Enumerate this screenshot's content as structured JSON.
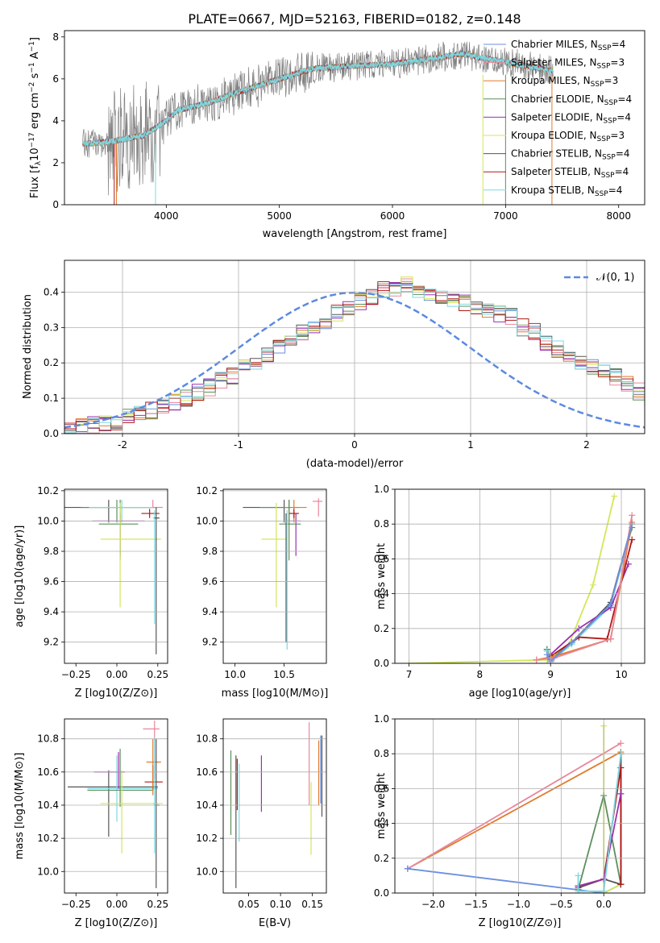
{
  "figure": {
    "title": "PLATE=0667, MJD=52163, FIBERID=0182, z=0.148",
    "legend": [
      {
        "label": "Chabrier MILES, N",
        "sub": "SSP",
        "tail": "=4",
        "color": "#6b8fe0"
      },
      {
        "label": "Salpeter MILES, N",
        "sub": "SSP",
        "tail": "=3",
        "color": "#e8879b"
      },
      {
        "label": "Kroupa MILES, N",
        "sub": "SSP",
        "tail": "=3",
        "color": "#e07b2e"
      },
      {
        "label": "Chabrier ELODIE, N",
        "sub": "SSP",
        "tail": "=4",
        "color": "#5b8f5b"
      },
      {
        "label": "Salpeter ELODIE, N",
        "sub": "SSP",
        "tail": "=4",
        "color": "#9b30b0"
      },
      {
        "label": "Kroupa ELODIE, N",
        "sub": "SSP",
        "tail": "=3",
        "color": "#d4e65a"
      },
      {
        "label": "Chabrier STELIB, N",
        "sub": "SSP",
        "tail": "=4",
        "color": "#555555"
      },
      {
        "label": "Salpeter STELIB, N",
        "sub": "SSP",
        "tail": "=4",
        "color": "#b01818"
      },
      {
        "label": "Kroupa STELIB, N",
        "sub": "SSP",
        "tail": "=4",
        "color": "#7fd8e0"
      }
    ],
    "hist_legend": "𝒩(0, 1)",
    "gauss_color": "#5b8ae0"
  },
  "chart_data": [
    {
      "type": "line",
      "name": "spectrum",
      "xlabel": "wavelength [Angstrom, rest frame]",
      "ylabel_parts": [
        "Flux [f",
        "λ",
        "10",
        "−17",
        " erg cm",
        "−2",
        " s",
        "−1",
        " A",
        "−1",
        "]"
      ],
      "xlim": [
        3100,
        8230
      ],
      "ylim": [
        0,
        8.3
      ],
      "xticks": [
        4000,
        5000,
        6000,
        7000,
        8000
      ],
      "yticks": [
        0,
        2,
        4,
        6,
        8
      ],
      "data_color": "#808080",
      "model_color": "#7fd8e0",
      "envelope": {
        "x": [
          3250,
          3500,
          3800,
          4000,
          4100,
          4400,
          4600,
          5000,
          5300,
          5600,
          6000,
          6400,
          6600,
          7000,
          7300,
          7400
        ],
        "y": [
          2.9,
          3.0,
          3.3,
          4.0,
          4.5,
          4.9,
          5.3,
          6.0,
          6.5,
          6.6,
          6.7,
          7.0,
          7.2,
          6.8,
          6.5,
          6.4
        ]
      },
      "data_extent": [
        3260,
        7420
      ],
      "model_extent": [
        3260,
        7420
      ]
    },
    {
      "type": "histogram",
      "name": "residuals",
      "xlabel": "(data-model)/error",
      "ylabel": "Normed distribution",
      "xlim": [
        -2.5,
        2.5
      ],
      "ylim": [
        0,
        0.49
      ],
      "xticks": [
        -2,
        -1,
        0,
        1,
        2
      ],
      "yticks": [
        0.0,
        0.1,
        0.2,
        0.3,
        0.4
      ],
      "bin_edges_start": -2.5,
      "bin_width": 0.1,
      "base_profile": [
        0.02,
        0.02,
        0.025,
        0.03,
        0.035,
        0.045,
        0.055,
        0.065,
        0.08,
        0.09,
        0.1,
        0.115,
        0.13,
        0.15,
        0.165,
        0.185,
        0.2,
        0.22,
        0.24,
        0.26,
        0.285,
        0.3,
        0.32,
        0.34,
        0.36,
        0.375,
        0.39,
        0.405,
        0.41,
        0.42,
        0.4,
        0.4,
        0.39,
        0.38,
        0.37,
        0.36,
        0.35,
        0.34,
        0.33,
        0.3,
        0.29,
        0.26,
        0.24,
        0.22,
        0.2,
        0.19,
        0.18,
        0.16,
        0.14,
        0.12,
        0.1,
        0.09,
        0.075,
        0.065,
        0.055,
        0.045,
        0.04,
        0.035,
        0.03,
        0.025,
        0.02
      ]
    },
    {
      "type": "errorbar",
      "name": "age-vs-Z",
      "xlabel": "Z [log10(Z/Z⊙)]",
      "ylabel": "age [log10(age/yr)]",
      "xlim": [
        -0.32,
        0.31
      ],
      "ylim": [
        9.06,
        10.21
      ],
      "xticks": [
        -0.25,
        0.0,
        0.25
      ],
      "xtick_labels": [
        "−0.25",
        "0.00",
        "0.25"
      ],
      "yticks": [
        9.2,
        9.4,
        9.6,
        9.8,
        10.0,
        10.2
      ],
      "points": [
        {
          "x": -0.05,
          "y": 10.09,
          "xerr": [
            0.27,
            0.3
          ],
          "yerr": [
            0.1,
            0.05
          ],
          "c": 6
        },
        {
          "x": 0.0,
          "y": 10.09,
          "xerr": [
            0.22,
            0.22
          ],
          "yerr": [
            0.1,
            0.05
          ],
          "c": 3
        },
        {
          "x": 0.03,
          "y": 10.09,
          "xerr": [
            0.2,
            0.2
          ],
          "yerr": [
            0.1,
            0.05
          ],
          "c": 8
        },
        {
          "x": 0.22,
          "y": 10.09,
          "xerr": [
            0.0,
            0.06
          ],
          "yerr": [
            0.0,
            0.05
          ],
          "c": 1
        },
        {
          "x": 0.2,
          "y": 10.05,
          "xerr": [
            0.05,
            0.06
          ],
          "yerr": [
            0.03,
            0.03
          ],
          "c": 7
        },
        {
          "x": 0.02,
          "y": 10.0,
          "xerr": [
            0.17,
            0.15
          ],
          "yerr": [
            0.23,
            0.05
          ],
          "c": 4
        },
        {
          "x": 0.02,
          "y": 9.98,
          "xerr": [
            0.13,
            0.11
          ],
          "yerr": [
            0.24,
            0.16
          ],
          "c": 3
        },
        {
          "x": 0.02,
          "y": 9.88,
          "xerr": [
            0.12,
            0.25
          ],
          "yerr": [
            0.45,
            0.24
          ],
          "c": 5
        },
        {
          "x": 0.23,
          "y": 10.02,
          "xerr": [
            0.01,
            0.03
          ],
          "yerr": [
            0.7,
            0.05
          ],
          "c": 8
        },
        {
          "x": 0.24,
          "y": 10.02,
          "xerr": [
            0.01,
            0.02
          ],
          "yerr": [
            0.9,
            0.07
          ],
          "c": 6
        }
      ]
    },
    {
      "type": "errorbar",
      "name": "age-vs-mass",
      "xlabel": "mass [log10(M/M⊙)]",
      "xlim": [
        9.88,
        10.93
      ],
      "ylim": [
        9.06,
        10.21
      ],
      "xticks": [
        10.0,
        10.5
      ],
      "xtick_labels": [
        "10.0",
        "10.5"
      ],
      "yticks": [
        9.2,
        9.4,
        9.6,
        9.8,
        10.0,
        10.2
      ],
      "points": [
        {
          "x": 10.5,
          "y": 10.09,
          "xerr": [
            0.42,
            0.05
          ],
          "yerr": [
            0.1,
            0.05
          ],
          "c": 6
        },
        {
          "x": 10.55,
          "y": 10.09,
          "xerr": [
            0.3,
            0.1
          ],
          "yerr": [
            0.1,
            0.05
          ],
          "c": 3
        },
        {
          "x": 10.6,
          "y": 10.09,
          "xerr": [
            0.1,
            0.13
          ],
          "yerr": [
            0.1,
            0.05
          ],
          "c": 2
        },
        {
          "x": 10.85,
          "y": 10.13,
          "xerr": [
            0.06,
            0.04
          ],
          "yerr": [
            0.1,
            0.02
          ],
          "c": 1
        },
        {
          "x": 10.6,
          "y": 10.05,
          "xerr": [
            0.05,
            0.05
          ],
          "yerr": [
            0.03,
            0.03
          ],
          "c": 7
        },
        {
          "x": 10.62,
          "y": 10.0,
          "xerr": [
            0.1,
            0.05
          ],
          "yerr": [
            0.23,
            0.05
          ],
          "c": 4
        },
        {
          "x": 10.55,
          "y": 9.98,
          "xerr": [
            0.1,
            0.12
          ],
          "yerr": [
            0.24,
            0.16
          ],
          "c": 3
        },
        {
          "x": 10.42,
          "y": 9.88,
          "xerr": [
            0.15,
            0.1
          ],
          "yerr": [
            0.45,
            0.24
          ],
          "c": 5
        },
        {
          "x": 10.52,
          "y": 10.0,
          "xerr": [
            0.01,
            0.02
          ],
          "yerr": [
            0.8,
            0.05
          ],
          "c": 6
        },
        {
          "x": 10.53,
          "y": 10.0,
          "xerr": [
            0.01,
            0.02
          ],
          "yerr": [
            0.85,
            0.07
          ],
          "c": 8
        }
      ]
    },
    {
      "type": "line",
      "name": "weight-vs-age",
      "xlabel": "age [log10(age/yr)]",
      "ylabel": "mass weight",
      "xlim": [
        6.8,
        10.33
      ],
      "ylim": [
        0.0,
        1.0
      ],
      "xticks": [
        7,
        8,
        9,
        10
      ],
      "yticks": [
        0.0,
        0.2,
        0.4,
        0.6,
        0.8,
        1.0
      ],
      "series": [
        {
          "c": 5,
          "x": [
            7.0,
            8.95,
            9.25,
            9.6,
            9.9
          ],
          "y": [
            0.0,
            0.02,
            0.1,
            0.45,
            0.96
          ]
        },
        {
          "c": 6,
          "x": [
            8.95,
            9.0,
            9.3,
            9.85,
            10.15
          ],
          "y": [
            0.08,
            0.02,
            0.12,
            0.35,
            0.8
          ]
        },
        {
          "c": 3,
          "x": [
            8.95,
            9.0,
            9.3,
            9.85,
            10.15
          ],
          "y": [
            0.08,
            0.02,
            0.12,
            0.34,
            0.78
          ]
        },
        {
          "c": 8,
          "x": [
            8.95,
            9.0,
            9.3,
            9.85,
            10.15
          ],
          "y": [
            0.07,
            0.01,
            0.11,
            0.33,
            0.8
          ]
        },
        {
          "c": 4,
          "x": [
            9.0,
            9.4,
            9.85,
            10.1
          ],
          "y": [
            0.05,
            0.2,
            0.32,
            0.57
          ]
        },
        {
          "c": 7,
          "x": [
            9.0,
            9.4,
            9.8,
            10.15
          ],
          "y": [
            0.04,
            0.15,
            0.14,
            0.71
          ]
        },
        {
          "c": 2,
          "x": [
            8.8,
            9.05,
            9.85,
            10.15
          ],
          "y": [
            0.02,
            0.04,
            0.14,
            0.81
          ]
        },
        {
          "c": 1,
          "x": [
            8.8,
            9.05,
            9.85,
            10.15
          ],
          "y": [
            0.02,
            0.03,
            0.14,
            0.85
          ]
        },
        {
          "c": 0,
          "x": [
            8.95,
            9.0,
            9.3,
            9.85,
            10.15
          ],
          "y": [
            0.05,
            0.01,
            0.12,
            0.34,
            0.8
          ]
        }
      ]
    },
    {
      "type": "errorbar",
      "name": "mass-vs-Z",
      "xlabel": "Z [log10(Z/Z⊙)]",
      "ylabel": "mass [log10(M/M⊙)]",
      "xlim": [
        -0.32,
        0.31
      ],
      "ylim": [
        9.87,
        10.92
      ],
      "xticks": [
        -0.25,
        0.0,
        0.25
      ],
      "xtick_labels": [
        "−0.25",
        "0.00",
        "0.25"
      ],
      "yticks": [
        10.0,
        10.2,
        10.4,
        10.6,
        10.8
      ],
      "points": [
        {
          "x": -0.05,
          "y": 10.51,
          "xerr": [
            0.25,
            0.3
          ],
          "yerr": [
            0.3,
            0.1
          ],
          "c": 6
        },
        {
          "x": 0.0,
          "y": 10.5,
          "xerr": [
            0.18,
            0.25
          ],
          "yerr": [
            0.2,
            0.2
          ],
          "c": 8
        },
        {
          "x": 0.02,
          "y": 10.49,
          "xerr": [
            0.2,
            0.2
          ],
          "yerr": [
            0.1,
            0.25
          ],
          "c": 3
        },
        {
          "x": 0.01,
          "y": 10.6,
          "xerr": [
            0.15,
            0.04
          ],
          "yerr": [
            0.1,
            0.12
          ],
          "c": 4
        },
        {
          "x": 0.22,
          "y": 10.54,
          "xerr": [
            0.05,
            0.06
          ],
          "yerr": [
            0.05,
            0.1
          ],
          "c": 7
        },
        {
          "x": 0.22,
          "y": 10.66,
          "xerr": [
            0.04,
            0.05
          ],
          "yerr": [
            0.2,
            0.14
          ],
          "c": 2
        },
        {
          "x": 0.23,
          "y": 10.86,
          "xerr": [
            0.07,
            0.03
          ],
          "yerr": [
            0.3,
            0.05
          ],
          "c": 1
        },
        {
          "x": 0.03,
          "y": 10.41,
          "xerr": [
            0.13,
            0.25
          ],
          "yerr": [
            0.3,
            0.2
          ],
          "c": 5
        },
        {
          "x": 0.24,
          "y": 10.4,
          "xerr": [
            0.01,
            0.02
          ],
          "yerr": [
            0.5,
            0.4
          ],
          "c": 6
        },
        {
          "x": 0.23,
          "y": 10.41,
          "xerr": [
            0.01,
            0.02
          ],
          "yerr": [
            0.3,
            0.4
          ],
          "c": 8
        }
      ]
    },
    {
      "type": "errorbar",
      "name": "mass-vs-ebv",
      "xlabel": "E(B-V)",
      "xlim": [
        0.01,
        0.172
      ],
      "ylim": [
        9.87,
        10.92
      ],
      "xticks": [
        0.05,
        0.1,
        0.15
      ],
      "xtick_labels": [
        "0.05",
        "0.10",
        "0.15"
      ],
      "yticks": [
        10.0,
        10.2,
        10.4,
        10.6,
        10.8
      ],
      "points": [
        {
          "x": 0.022,
          "y": 10.48,
          "yerr": [
            0.26,
            0.25
          ],
          "c": 3
        },
        {
          "x": 0.03,
          "y": 10.4,
          "yerr": [
            0.5,
            0.3
          ],
          "c": 6
        },
        {
          "x": 0.032,
          "y": 10.52,
          "yerr": [
            0.15,
            0.16
          ],
          "c": 7
        },
        {
          "x": 0.035,
          "y": 10.4,
          "yerr": [
            0.22,
            0.25
          ],
          "c": 8
        },
        {
          "x": 0.07,
          "y": 10.52,
          "yerr": [
            0.16,
            0.18
          ],
          "c": 4
        },
        {
          "x": 0.145,
          "y": 10.66,
          "yerr": [
            0.26,
            0.24
          ],
          "c": 1
        },
        {
          "x": 0.148,
          "y": 10.3,
          "yerr": [
            0.2,
            0.24
          ],
          "c": 5
        },
        {
          "x": 0.16,
          "y": 10.6,
          "yerr": [
            0.2,
            0.19
          ],
          "c": 2
        },
        {
          "x": 0.163,
          "y": 10.62,
          "yerr": [
            0.21,
            0.2
          ],
          "c": 0
        },
        {
          "x": 0.165,
          "y": 10.58,
          "yerr": [
            0.25,
            0.24
          ],
          "c": 6
        }
      ]
    },
    {
      "type": "line",
      "name": "weight-vs-Z",
      "xlabel": "Z [log10(Z/Z⊙)]",
      "ylabel": "mass weight",
      "xlim": [
        -2.45,
        0.48
      ],
      "ylim": [
        0.0,
        1.0
      ],
      "xticks": [
        -2.0,
        -1.5,
        -1.0,
        -0.5,
        0.0
      ],
      "xtick_labels": [
        "−2.0",
        "−1.5",
        "−1.0",
        "−0.5",
        "0.0"
      ],
      "yticks": [
        0.0,
        0.2,
        0.4,
        0.6,
        0.8,
        1.0
      ],
      "series": [
        {
          "c": 2,
          "x": [
            -2.3,
            0.2
          ],
          "y": [
            0.14,
            0.81
          ]
        },
        {
          "c": 1,
          "x": [
            -2.3,
            0.2
          ],
          "y": [
            0.14,
            0.86
          ]
        },
        {
          "c": 0,
          "x": [
            -2.3,
            0.0,
            0.2,
            0.2
          ],
          "y": [
            0.14,
            0.0,
            0.05,
            0.8
          ]
        },
        {
          "c": 5,
          "x": [
            0.0,
            0.0,
            0.2
          ],
          "y": [
            0.96,
            0.0,
            0.05
          ]
        },
        {
          "c": 3,
          "x": [
            -0.3,
            0.0,
            0.2,
            0.2
          ],
          "y": [
            0.02,
            0.56,
            0.05,
            0.8
          ]
        },
        {
          "c": 6,
          "x": [
            -0.3,
            0.0,
            0.2,
            0.2
          ],
          "y": [
            0.03,
            0.08,
            0.05,
            0.8
          ]
        },
        {
          "c": 7,
          "x": [
            -0.3,
            0.0,
            0.2,
            0.2
          ],
          "y": [
            0.04,
            0.08,
            0.72,
            0.05
          ]
        },
        {
          "c": 4,
          "x": [
            -0.3,
            0.0,
            0.2
          ],
          "y": [
            0.04,
            0.08,
            0.57
          ]
        },
        {
          "c": 8,
          "x": [
            -0.3,
            -0.3,
            0.0,
            0.2
          ],
          "y": [
            0.1,
            0.01,
            0.01,
            0.8
          ]
        }
      ]
    }
  ]
}
